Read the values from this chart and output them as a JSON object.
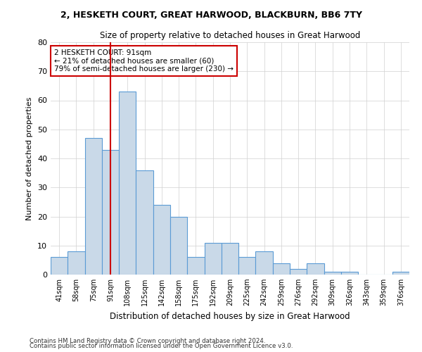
{
  "title": "2, HESKETH COURT, GREAT HARWOOD, BLACKBURN, BB6 7TY",
  "subtitle": "Size of property relative to detached houses in Great Harwood",
  "xlabel": "Distribution of detached houses by size in Great Harwood",
  "ylabel": "Number of detached properties",
  "bar_labels": [
    "41sqm",
    "58sqm",
    "75sqm",
    "91sqm",
    "108sqm",
    "125sqm",
    "142sqm",
    "158sqm",
    "175sqm",
    "192sqm",
    "209sqm",
    "225sqm",
    "242sqm",
    "259sqm",
    "276sqm",
    "292sqm",
    "309sqm",
    "326sqm",
    "343sqm",
    "359sqm",
    "376sqm"
  ],
  "bar_values": [
    6,
    8,
    47,
    43,
    63,
    36,
    24,
    20,
    6,
    11,
    11,
    6,
    8,
    4,
    2,
    4,
    1,
    1,
    0,
    0,
    1
  ],
  "bar_color": "#c9d9e8",
  "bar_edge_color": "#5b9bd5",
  "marker_index": 3,
  "marker_line_color": "#cc0000",
  "annotation_line1": "2 HESKETH COURT: 91sqm",
  "annotation_line2": "← 21% of detached houses are smaller (60)",
  "annotation_line3": "79% of semi-detached houses are larger (230) →",
  "annotation_box_color": "#ffffff",
  "annotation_box_edge": "#cc0000",
  "ylim": [
    0,
    80
  ],
  "yticks": [
    0,
    10,
    20,
    30,
    40,
    50,
    60,
    70,
    80
  ],
  "footer_line1": "Contains HM Land Registry data © Crown copyright and database right 2024.",
  "footer_line2": "Contains public sector information licensed under the Open Government Licence v3.0.",
  "bg_color": "#ffffff",
  "grid_color": "#d0d0d0"
}
